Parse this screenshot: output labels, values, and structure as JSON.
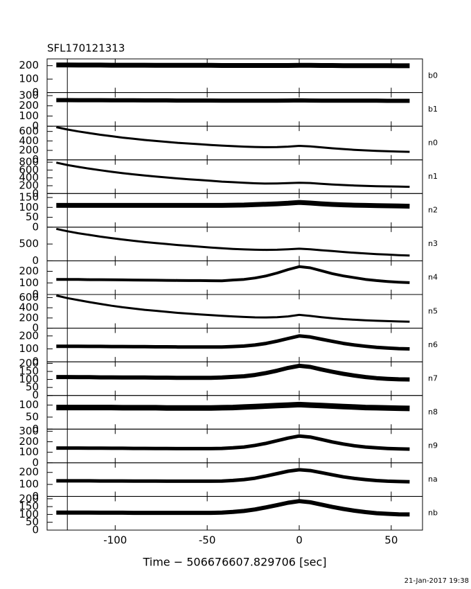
{
  "chart_data": {
    "type": "line",
    "title": "SFL170121313",
    "xlabel": "Time − 506676607.829706 [sec]",
    "footer": "21-Jan-2017 19:38",
    "color": "#000000",
    "x": [
      -132,
      -126,
      -120,
      -114,
      -108,
      -102,
      -96,
      -90,
      -84,
      -78,
      -72,
      -66,
      -60,
      -54,
      -48,
      -42,
      -36,
      -30,
      -24,
      -18,
      -12,
      -6,
      0,
      6,
      12,
      18,
      24,
      30,
      36,
      42,
      48,
      54,
      60
    ],
    "xlim": [
      -137,
      67
    ],
    "xticks": [
      -100,
      -50,
      0,
      50
    ],
    "marker_x": -126,
    "panels": [
      {
        "name": "b0",
        "ylim": [
          0,
          250
        ],
        "yticks": [
          0,
          100,
          200
        ],
        "values": [
          205,
          205,
          204,
          204,
          204,
          203,
          203,
          203,
          203,
          202,
          202,
          202,
          202,
          202,
          202,
          201,
          201,
          201,
          201,
          201,
          201,
          201,
          202,
          202,
          201,
          201,
          200,
          200,
          200,
          200,
          200,
          199,
          199
        ]
      },
      {
        "name": "b1",
        "ylim": [
          0,
          330
        ],
        "yticks": [
          0,
          100,
          200,
          300
        ],
        "values": [
          256,
          256,
          255,
          255,
          255,
          254,
          254,
          254,
          253,
          253,
          253,
          252,
          252,
          252,
          252,
          251,
          251,
          251,
          251,
          251,
          251,
          252,
          253,
          252,
          251,
          251,
          250,
          250,
          250,
          250,
          249,
          249,
          249
        ]
      },
      {
        "name": "n0",
        "ylim": [
          0,
          710
        ],
        "yticks": [
          0,
          200,
          400,
          600
        ],
        "values": [
          690,
          640,
          600,
          565,
          530,
          500,
          470,
          445,
          420,
          400,
          380,
          360,
          345,
          330,
          315,
          302,
          290,
          280,
          272,
          268,
          270,
          280,
          295,
          285,
          265,
          245,
          228,
          212,
          200,
          190,
          182,
          176,
          170
        ]
      },
      {
        "name": "n1",
        "ylim": [
          0,
          860
        ],
        "yticks": [
          0,
          200,
          400,
          600,
          800
        ],
        "values": [
          790,
          730,
          680,
          635,
          595,
          555,
          520,
          490,
          460,
          435,
          410,
          385,
          365,
          345,
          325,
          305,
          290,
          275,
          262,
          255,
          258,
          265,
          275,
          268,
          250,
          232,
          218,
          206,
          196,
          188,
          182,
          176,
          172
        ]
      },
      {
        "name": "n2",
        "ylim": [
          0,
          170
        ],
        "yticks": [
          0,
          50,
          100,
          150
        ],
        "values": [
          110,
          110,
          110,
          110,
          110,
          110,
          110,
          110,
          110,
          110,
          110,
          110,
          110,
          110,
          110,
          110,
          111,
          112,
          114,
          116,
          118,
          121,
          125,
          122,
          118,
          115,
          113,
          111,
          110,
          109,
          108,
          107,
          106
        ]
      },
      {
        "name": "n3",
        "ylim": [
          0,
          1000
        ],
        "yticks": [
          0,
          500
        ],
        "values": [
          950,
          880,
          820,
          770,
          720,
          675,
          635,
          595,
          560,
          530,
          500,
          470,
          445,
          420,
          395,
          375,
          355,
          340,
          330,
          325,
          330,
          345,
          360,
          345,
          315,
          290,
          265,
          240,
          220,
          200,
          185,
          170,
          160
        ]
      },
      {
        "name": "n4",
        "ylim": [
          0,
          290
        ],
        "yticks": [
          0,
          100,
          200
        ],
        "values": [
          130,
          130,
          130,
          128,
          128,
          127,
          126,
          125,
          124,
          123,
          122,
          121,
          120,
          120,
          119,
          118,
          125,
          130,
          142,
          160,
          185,
          215,
          240,
          230,
          205,
          180,
          160,
          145,
          130,
          120,
          112,
          106,
          102
        ]
      },
      {
        "name": "n5",
        "ylim": [
          0,
          660
        ],
        "yticks": [
          0,
          200,
          400,
          600
        ],
        "values": [
          640,
          590,
          550,
          510,
          475,
          440,
          410,
          385,
          360,
          340,
          320,
          300,
          285,
          270,
          255,
          242,
          230,
          220,
          212,
          210,
          215,
          230,
          260,
          240,
          215,
          195,
          178,
          165,
          155,
          145,
          138,
          132,
          128
        ]
      },
      {
        "name": "n6",
        "ylim": [
          0,
          260
        ],
        "yticks": [
          0,
          100,
          200
        ],
        "values": [
          120,
          120,
          120,
          119,
          119,
          118,
          118,
          117,
          117,
          116,
          116,
          115,
          115,
          115,
          114,
          114,
          118,
          122,
          130,
          142,
          160,
          180,
          200,
          192,
          175,
          158,
          142,
          130,
          120,
          112,
          106,
          102,
          100
        ]
      },
      {
        "name": "n7",
        "ylim": [
          0,
          210
        ],
        "yticks": [
          0,
          50,
          100,
          150,
          200
        ],
        "values": [
          115,
          115,
          114,
          114,
          113,
          113,
          112,
          112,
          112,
          111,
          111,
          110,
          110,
          110,
          110,
          112,
          116,
          120,
          128,
          140,
          155,
          172,
          185,
          178,
          162,
          148,
          135,
          124,
          115,
          108,
          104,
          101,
          100
        ]
      },
      {
        "name": "n8",
        "ylim": [
          0,
          140
        ],
        "yticks": [
          0,
          50,
          100
        ],
        "values": [
          90,
          90,
          90,
          90,
          90,
          90,
          89,
          89,
          89,
          89,
          88,
          88,
          88,
          88,
          88,
          89,
          90,
          92,
          94,
          96,
          98,
          100,
          102,
          100,
          98,
          96,
          94,
          92,
          90,
          89,
          88,
          87,
          86
        ]
      },
      {
        "name": "n9",
        "ylim": [
          0,
          320
        ],
        "yticks": [
          0,
          100,
          200,
          300
        ],
        "values": [
          140,
          140,
          140,
          139,
          139,
          138,
          138,
          137,
          137,
          136,
          136,
          135,
          135,
          135,
          135,
          137,
          142,
          150,
          165,
          185,
          210,
          235,
          255,
          245,
          222,
          198,
          178,
          162,
          150,
          142,
          136,
          132,
          130
        ]
      },
      {
        "name": "na",
        "ylim": [
          0,
          280
        ],
        "yticks": [
          0,
          100,
          200
        ],
        "values": [
          130,
          130,
          130,
          130,
          129,
          129,
          129,
          128,
          128,
          128,
          127,
          127,
          127,
          127,
          127,
          128,
          133,
          140,
          152,
          170,
          190,
          210,
          222,
          215,
          198,
          180,
          163,
          150,
          140,
          132,
          127,
          124,
          122
        ]
      },
      {
        "name": "nb",
        "ylim": [
          0,
          215
        ],
        "yticks": [
          0,
          50,
          100,
          150,
          200
        ],
        "values": [
          112,
          112,
          112,
          112,
          111,
          111,
          111,
          110,
          110,
          110,
          110,
          110,
          110,
          110,
          110,
          112,
          116,
          122,
          132,
          145,
          160,
          175,
          185,
          178,
          163,
          148,
          135,
          124,
          115,
          108,
          104,
          101,
          100
        ]
      }
    ]
  }
}
